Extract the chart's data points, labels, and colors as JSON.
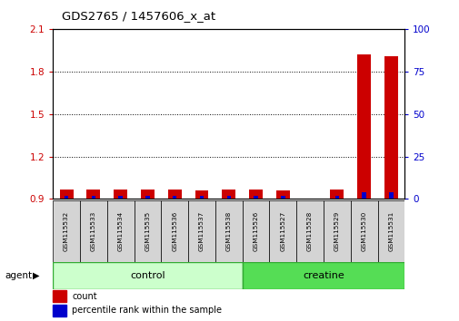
{
  "title": "GDS2765 / 1457606_x_at",
  "samples": [
    "GSM115532",
    "GSM115533",
    "GSM115534",
    "GSM115535",
    "GSM115536",
    "GSM115537",
    "GSM115538",
    "GSM115526",
    "GSM115527",
    "GSM115528",
    "GSM115529",
    "GSM115530",
    "GSM115531"
  ],
  "n_control": 7,
  "n_creatine": 6,
  "count_values": [
    0.97,
    0.97,
    0.97,
    0.97,
    0.97,
    0.96,
    0.97,
    0.97,
    0.96,
    0.9,
    0.97,
    1.92,
    1.91
  ],
  "percentile_values": [
    2,
    2,
    2,
    2,
    2,
    2,
    2,
    2,
    2,
    0,
    2,
    4,
    4
  ],
  "ylim_left": [
    0.9,
    2.1
  ],
  "ylim_right": [
    0,
    100
  ],
  "yticks_left": [
    0.9,
    1.2,
    1.5,
    1.8,
    2.1
  ],
  "yticks_right": [
    0,
    25,
    50,
    75,
    100
  ],
  "bar_width": 0.5,
  "bar_color_count": "#cc0000",
  "bar_color_pct": "#0000cc",
  "control_color": "#ccffcc",
  "creatine_color": "#55dd55",
  "label_agent": "agent",
  "label_control": "control",
  "label_creatine": "creatine",
  "legend_count": "count",
  "legend_pct": "percentile rank within the sample",
  "tick_color_left": "#cc0000",
  "tick_color_right": "#0000cc",
  "grid_ticks": [
    1.2,
    1.5,
    1.8
  ]
}
